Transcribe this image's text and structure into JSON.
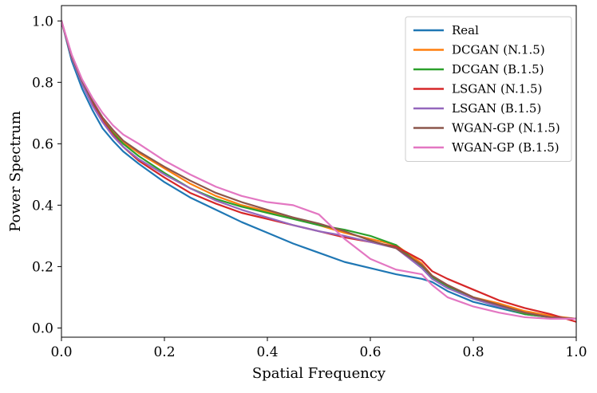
{
  "chart_data": {
    "type": "line",
    "title": "",
    "xlabel": "Spatial Frequency",
    "ylabel": "Power Spectrum",
    "xlim": [
      0.0,
      1.0
    ],
    "ylim": [
      -0.03,
      1.05
    ],
    "xticks": [
      0.0,
      0.2,
      0.4,
      0.6,
      0.8,
      1.0
    ],
    "xtick_labels": [
      "0.0",
      "0.2",
      "0.4",
      "0.6",
      "0.8",
      "1.0"
    ],
    "yticks": [
      0.0,
      0.2,
      0.4,
      0.6,
      0.8,
      1.0
    ],
    "ytick_labels": [
      "0.0",
      "0.2",
      "0.4",
      "0.6",
      "0.8",
      "1.0"
    ],
    "grid": false,
    "legend_position": "top-right",
    "x": [
      0.0,
      0.02,
      0.04,
      0.06,
      0.08,
      0.1,
      0.12,
      0.15,
      0.2,
      0.25,
      0.3,
      0.35,
      0.4,
      0.45,
      0.5,
      0.55,
      0.6,
      0.65,
      0.7,
      0.72,
      0.75,
      0.8,
      0.85,
      0.9,
      0.95,
      1.0
    ],
    "series": [
      {
        "name": "Real",
        "color": "#1f77b4",
        "values": [
          1.0,
          0.87,
          0.78,
          0.71,
          0.65,
          0.61,
          0.575,
          0.535,
          0.475,
          0.425,
          0.385,
          0.345,
          0.31,
          0.275,
          0.245,
          0.215,
          0.195,
          0.175,
          0.16,
          0.15,
          0.12,
          0.085,
          0.065,
          0.045,
          0.035,
          0.03
        ]
      },
      {
        "name": "DCGAN (N.1.5)",
        "color": "#ff7f0e",
        "values": [
          1.0,
          0.88,
          0.8,
          0.735,
          0.68,
          0.64,
          0.605,
          0.57,
          0.52,
          0.47,
          0.43,
          0.4,
          0.38,
          0.36,
          0.335,
          0.31,
          0.29,
          0.27,
          0.21,
          0.17,
          0.14,
          0.1,
          0.08,
          0.055,
          0.04,
          0.03
        ]
      },
      {
        "name": "DCGAN (B.1.5)",
        "color": "#2ca02c",
        "values": [
          1.0,
          0.88,
          0.795,
          0.73,
          0.675,
          0.635,
          0.6,
          0.56,
          0.505,
          0.455,
          0.42,
          0.395,
          0.375,
          0.355,
          0.335,
          0.32,
          0.3,
          0.27,
          0.2,
          0.165,
          0.135,
          0.095,
          0.07,
          0.045,
          0.035,
          0.03
        ]
      },
      {
        "name": "LSGAN (N.1.5)",
        "color": "#d62728",
        "values": [
          1.0,
          0.88,
          0.8,
          0.735,
          0.675,
          0.63,
          0.59,
          0.545,
          0.49,
          0.44,
          0.405,
          0.375,
          0.355,
          0.335,
          0.315,
          0.295,
          0.28,
          0.265,
          0.22,
          0.185,
          0.16,
          0.125,
          0.09,
          0.065,
          0.045,
          0.02
        ]
      },
      {
        "name": "LSGAN (B.1.5)",
        "color": "#9467bd",
        "values": [
          1.0,
          0.88,
          0.795,
          0.725,
          0.67,
          0.625,
          0.59,
          0.55,
          0.5,
          0.455,
          0.415,
          0.385,
          0.36,
          0.335,
          0.315,
          0.3,
          0.28,
          0.26,
          0.195,
          0.16,
          0.13,
          0.095,
          0.07,
          0.05,
          0.035,
          0.03
        ]
      },
      {
        "name": "WGAN-GP (N.1.5)",
        "color": "#8c564b",
        "values": [
          1.0,
          0.885,
          0.805,
          0.74,
          0.685,
          0.645,
          0.61,
          0.575,
          0.525,
          0.48,
          0.44,
          0.41,
          0.385,
          0.36,
          0.34,
          0.315,
          0.285,
          0.26,
          0.205,
          0.17,
          0.14,
          0.1,
          0.075,
          0.05,
          0.035,
          0.03
        ]
      },
      {
        "name": "WGAN-GP (B.1.5)",
        "color": "#e377c2",
        "values": [
          1.0,
          0.89,
          0.81,
          0.75,
          0.7,
          0.66,
          0.63,
          0.6,
          0.545,
          0.5,
          0.46,
          0.43,
          0.41,
          0.4,
          0.37,
          0.29,
          0.225,
          0.19,
          0.175,
          0.14,
          0.1,
          0.07,
          0.05,
          0.035,
          0.03,
          0.03
        ]
      }
    ]
  }
}
